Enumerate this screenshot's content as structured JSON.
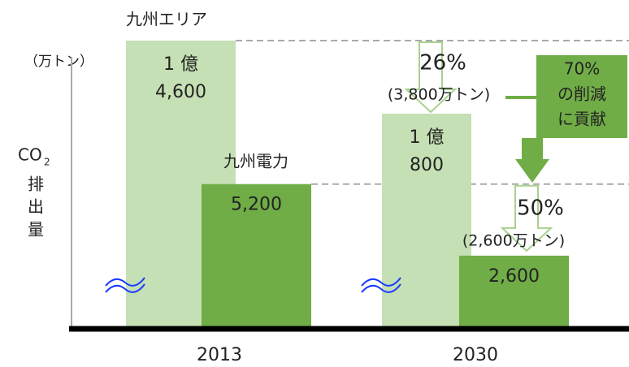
{
  "chart_data": {
    "type": "bar",
    "unit": "（万トン）",
    "y_label": [
      "CO",
      "2",
      "排",
      "出",
      "量"
    ],
    "categories": [
      "2013",
      "2030"
    ],
    "axis_break": true,
    "series": [
      {
        "name": "九州エリア",
        "color": "#c5e0b4",
        "values": [
          14600,
          10800
        ],
        "value_labels": [
          [
            "1 億",
            "4,600"
          ],
          [
            "1 億",
            "800"
          ]
        ]
      },
      {
        "name": "九州電力",
        "color": "#70ad47",
        "values": [
          5200,
          2600
        ],
        "value_labels": [
          "5,200",
          "2,600"
        ]
      }
    ],
    "reductions": [
      {
        "percent": "26%",
        "amount": "(3,800万トン)"
      },
      {
        "percent": "50%",
        "amount": "(2,600万トン)"
      }
    ],
    "callout": [
      "70%",
      "の削減",
      "に貢献"
    ]
  }
}
